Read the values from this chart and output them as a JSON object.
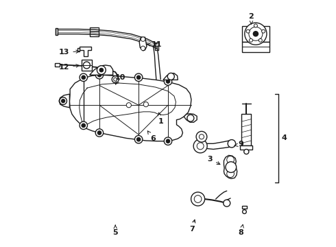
{
  "background_color": "#ffffff",
  "line_color": "#1a1a1a",
  "label_color": "#000000",
  "fig_width": 4.9,
  "fig_height": 3.6,
  "dpi": 100,
  "labels": {
    "1": [
      0.47,
      0.51,
      0.47,
      0.545
    ],
    "2": [
      0.84,
      0.935,
      0.84,
      0.895
    ],
    "3": [
      0.67,
      0.355,
      0.715,
      0.355
    ],
    "4": [
      0.975,
      0.44,
      0.955,
      0.44
    ],
    "5": [
      0.285,
      0.052,
      0.285,
      0.095
    ],
    "6": [
      0.435,
      0.435,
      0.415,
      0.47
    ],
    "7": [
      0.6,
      0.065,
      0.6,
      0.115
    ],
    "8": [
      0.795,
      0.055,
      0.795,
      0.1
    ],
    "9": [
      0.795,
      0.415,
      0.76,
      0.4
    ],
    "10": [
      0.305,
      0.685,
      0.29,
      0.655
    ],
    "11": [
      0.455,
      0.82,
      0.415,
      0.82
    ],
    "12": [
      0.1,
      0.735,
      0.145,
      0.735
    ],
    "13": [
      0.1,
      0.795,
      0.145,
      0.795
    ]
  }
}
